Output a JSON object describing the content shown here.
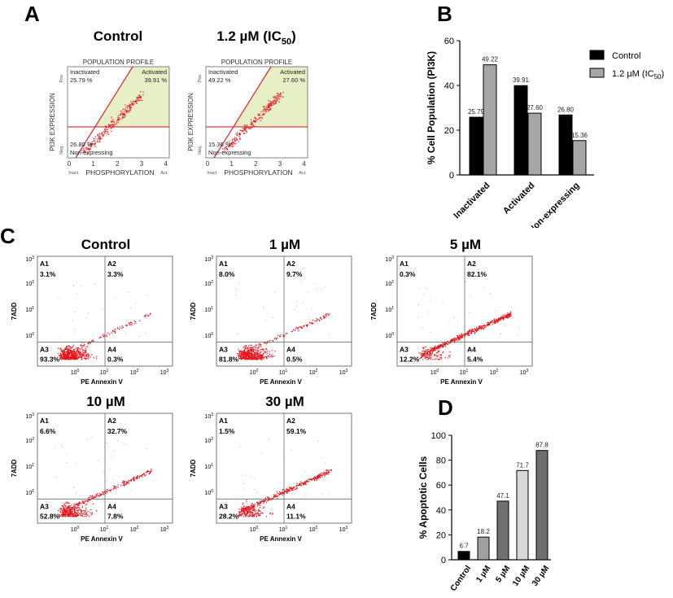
{
  "panels": {
    "a": "A",
    "b": "B",
    "c": "C",
    "d": "D"
  },
  "panel_a": {
    "plots": [
      {
        "title": "Control",
        "header": "POPULATION PROFILE",
        "inactivated_label": "Inactivated",
        "inactivated_value": "25.79 %",
        "activated_label": "Activated",
        "activated_value": "39.91 %",
        "nonexp_value": "26.80 %",
        "nonexp_label": "Non-expressing"
      },
      {
        "title": "1.2 µM (IC",
        "title_sub": "50",
        "title_end": ")",
        "header": "POPULATION PROFILE",
        "inactivated_label": "Inactivated",
        "inactivated_value": "49.22 %",
        "activated_label": "Activated",
        "activated_value": "27.60 %",
        "nonexp_value": "15.36 %",
        "nonexp_label": "Non-expressing"
      }
    ],
    "ylabel": "PI3K EXPRESSION",
    "y_pos": "Pos.",
    "y_neg": "Neg.",
    "xlabel": "PHOSPHORYLATION",
    "x_inact": "Inact.",
    "x_act": "Act.",
    "xticks": [
      "0",
      "1",
      "2",
      "3",
      "4"
    ]
  },
  "panel_c": {
    "plots": [
      {
        "title": "Control",
        "a1": "3.1%",
        "a2": "3.3%",
        "a3": "93.3%",
        "a4": "0.3%"
      },
      {
        "title": "1 µM",
        "a1": "8.0%",
        "a2": "9.7%",
        "a3": "81.8%",
        "a4": "0.5%"
      },
      {
        "title": "5 µM",
        "a1": "0.3%",
        "a2": "82.1%",
        "a3": "12.2%",
        "a4": "5.4%"
      },
      {
        "title": "10 µM",
        "a1": "6.6%",
        "a2": "32.7%",
        "a3": "52.8%",
        "a4": "7.8%"
      },
      {
        "title": "30 µM",
        "a1": "1.5%",
        "a2": "59.1%",
        "a3": "28.2%",
        "a4": "11.1%"
      }
    ],
    "quadrants": [
      "A1",
      "A2",
      "A3",
      "A4"
    ],
    "xlabel": "PE Annexin V",
    "ylabel": "7ADD",
    "tick_base": "10",
    "tick_exps": [
      "0",
      "1",
      "2",
      "3"
    ]
  },
  "colors": {
    "black_bar": "#000000",
    "gray_bar": "#a6a6a6",
    "gate_fill": "#e6efc6",
    "gate_line": "#e0262d",
    "dots": "#e8141b"
  },
  "chart_data": [
    {
      "type": "bar",
      "ylabel": "% Cell Population (PI3K)",
      "categories": [
        "Inactivated",
        "Activated",
        "Non-expressing"
      ],
      "series": [
        {
          "name": "Control",
          "values": [
            25.79,
            39.91,
            26.8
          ],
          "labels": [
            "25.79",
            "39.91",
            "26.80"
          ]
        },
        {
          "name": "1.2 µM (IC",
          "name_sub": "50",
          "name_end": ")",
          "values": [
            49.22,
            27.6,
            15.36
          ],
          "labels": [
            "49.22",
            "27.60",
            "15.36"
          ]
        }
      ],
      "ylim": [
        0,
        60
      ],
      "yticks": [
        "0",
        "20",
        "40",
        "60"
      ]
    },
    {
      "type": "bar",
      "ylabel": "% Apoptotic Cells",
      "categories": [
        "Control",
        "1 µM",
        "5 µM",
        "10 µM",
        "30 µM"
      ],
      "values": [
        6.7,
        18.2,
        47.1,
        71.7,
        87.8
      ],
      "labels": [
        "6.7",
        "18.2",
        "47.1",
        "71.7",
        "87.8"
      ],
      "bar_colors": [
        "#000000",
        "#a0a0a0",
        "#707070",
        "#d8d8d8",
        "#6e6e6e"
      ],
      "ylim": [
        0,
        100
      ],
      "yticks": [
        "0",
        "20",
        "40",
        "60",
        "80",
        "100"
      ]
    }
  ]
}
